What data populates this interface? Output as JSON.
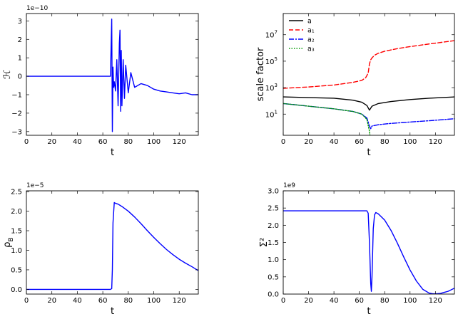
{
  "chart_data": [
    {
      "id": "H",
      "type": "line",
      "title": "",
      "xlabel": "t",
      "ylabel": "ℋ",
      "offset_label": "1e−10",
      "xlim": [
        0,
        135
      ],
      "ylim": [
        -3.2,
        3.4
      ],
      "x_ticks": [
        0,
        20,
        40,
        60,
        80,
        100,
        120
      ],
      "y_ticks": [
        -3,
        -2,
        -1,
        0,
        1,
        2,
        3
      ],
      "y_tick_labels": [
        "−3",
        "−2",
        "−1",
        "0",
        "1",
        "2",
        "3"
      ],
      "series": [
        {
          "color": "#0000ff",
          "x": [
            0,
            66,
            67,
            67.5,
            68,
            68.5,
            69,
            70,
            71,
            72,
            73,
            73.5,
            74,
            74.5,
            75,
            76,
            77,
            78,
            80,
            82,
            85,
            90,
            95,
            100,
            105,
            110,
            115,
            120,
            125,
            130,
            135
          ],
          "y": [
            0.0,
            0.0,
            3.1,
            -3.0,
            0.5,
            -0.6,
            -0.3,
            -0.8,
            0.9,
            -1.6,
            1.8,
            2.5,
            -1.9,
            1.4,
            -1.6,
            0.9,
            -1.2,
            0.6,
            -0.9,
            0.2,
            -0.6,
            -0.4,
            -0.5,
            -0.7,
            -0.8,
            -0.85,
            -0.9,
            -0.95,
            -0.9,
            -1.0,
            -1.0
          ]
        }
      ]
    },
    {
      "id": "scale",
      "type": "line",
      "title": "",
      "xlabel": "t",
      "ylabel": "scale factor",
      "y_scale": "log",
      "xlim": [
        0,
        135
      ],
      "ylim_log10": [
        -0.6,
        8.6
      ],
      "x_ticks": [
        0,
        20,
        40,
        60,
        80,
        100,
        120
      ],
      "y_ticks_log10": [
        1,
        3,
        5,
        7
      ],
      "y_tick_labels": [
        "10",
        "10",
        "10",
        "10"
      ],
      "y_tick_exponents": [
        "1",
        "3",
        "5",
        "7"
      ],
      "legend_position": "top-left",
      "series": [
        {
          "name": "a",
          "color": "#000000",
          "dash": "",
          "x": [
            0,
            20,
            40,
            55,
            62,
            66,
            68,
            69,
            70,
            75,
            85,
            100,
            115,
            135
          ],
          "y_log10": [
            2.3,
            2.25,
            2.2,
            2.05,
            1.9,
            1.65,
            1.3,
            1.45,
            1.6,
            1.8,
            1.95,
            2.1,
            2.2,
            2.3
          ]
        },
        {
          "name": "a₁",
          "color": "#ff0000",
          "dash": "6,3",
          "x": [
            0,
            20,
            40,
            55,
            62,
            65,
            67,
            68,
            69,
            70,
            72,
            75,
            80,
            90,
            100,
            115,
            135
          ],
          "y_log10": [
            2.95,
            3.05,
            3.2,
            3.4,
            3.55,
            3.75,
            4.1,
            4.8,
            5.1,
            5.25,
            5.45,
            5.6,
            5.75,
            5.95,
            6.1,
            6.3,
            6.55
          ]
        },
        {
          "name": "a₂",
          "color": "#0000ff",
          "dash": "7,2,2,2",
          "x": [
            0,
            20,
            40,
            55,
            62,
            66,
            68,
            69,
            70,
            75,
            85,
            100,
            115,
            135
          ],
          "y_log10": [
            1.8,
            1.6,
            1.4,
            1.2,
            1.0,
            0.7,
            0.1,
            -0.1,
            0.1,
            0.2,
            0.3,
            0.4,
            0.5,
            0.65
          ]
        },
        {
          "name": "a₃",
          "color": "#009900",
          "dash": "1.5,2",
          "x": [
            0,
            20,
            40,
            55,
            62,
            66,
            68,
            69,
            70,
            75,
            85,
            100,
            115,
            135
          ],
          "y_log10": [
            1.8,
            1.6,
            1.4,
            1.2,
            1.0,
            0.6,
            -0.3,
            -1.15,
            -1.2,
            -1.25,
            -1.25,
            -1.25,
            -1.2,
            -1.15
          ]
        }
      ]
    },
    {
      "id": "rho",
      "type": "line",
      "title": "",
      "xlabel": "t",
      "ylabel": "ρ_B",
      "offset_label": "1e−5",
      "xlim": [
        0,
        135
      ],
      "ylim": [
        -0.12,
        2.52
      ],
      "x_ticks": [
        0,
        20,
        40,
        60,
        80,
        100,
        120
      ],
      "y_ticks": [
        0.0,
        0.5,
        1.0,
        1.5,
        2.0,
        2.5
      ],
      "y_tick_labels": [
        "0.0",
        "0.5",
        "1.0",
        "1.5",
        "2.0",
        "2.5"
      ],
      "series": [
        {
          "color": "#0000ff",
          "x": [
            0,
            66,
            67,
            67.5,
            68,
            69,
            70,
            72,
            75,
            80,
            85,
            90,
            95,
            100,
            105,
            110,
            115,
            120,
            125,
            130,
            135
          ],
          "y": [
            0.0,
            0.0,
            0.02,
            0.5,
            1.7,
            2.22,
            2.2,
            2.18,
            2.12,
            2.0,
            1.85,
            1.68,
            1.5,
            1.33,
            1.17,
            1.02,
            0.89,
            0.77,
            0.67,
            0.58,
            0.48
          ]
        }
      ]
    },
    {
      "id": "sigma",
      "type": "line",
      "title": "",
      "xlabel": "t",
      "ylabel": "Σ²",
      "offset_label": "1e9",
      "xlim": [
        0,
        135
      ],
      "ylim": [
        0.0,
        3.0
      ],
      "x_ticks": [
        0,
        20,
        40,
        60,
        80,
        100,
        120
      ],
      "y_ticks": [
        0.0,
        0.5,
        1.0,
        1.5,
        2.0,
        2.5,
        3.0
      ],
      "y_tick_labels": [
        "0.0",
        "0.5",
        "1.0",
        "1.5",
        "2.0",
        "2.5",
        "3.0"
      ],
      "series": [
        {
          "color": "#0000ff",
          "x": [
            0,
            60,
            66,
            67,
            68,
            69,
            69.5,
            70,
            71,
            72,
            73,
            75,
            80,
            85,
            90,
            95,
            100,
            105,
            110,
            115,
            118,
            121,
            124,
            127,
            130,
            135
          ],
          "y": [
            2.42,
            2.42,
            2.42,
            2.35,
            1.5,
            0.3,
            0.08,
            0.5,
            1.9,
            2.3,
            2.37,
            2.33,
            2.15,
            1.85,
            1.48,
            1.08,
            0.7,
            0.38,
            0.14,
            0.03,
            0.01,
            0.01,
            0.02,
            0.05,
            0.08,
            0.17
          ]
        }
      ]
    }
  ]
}
